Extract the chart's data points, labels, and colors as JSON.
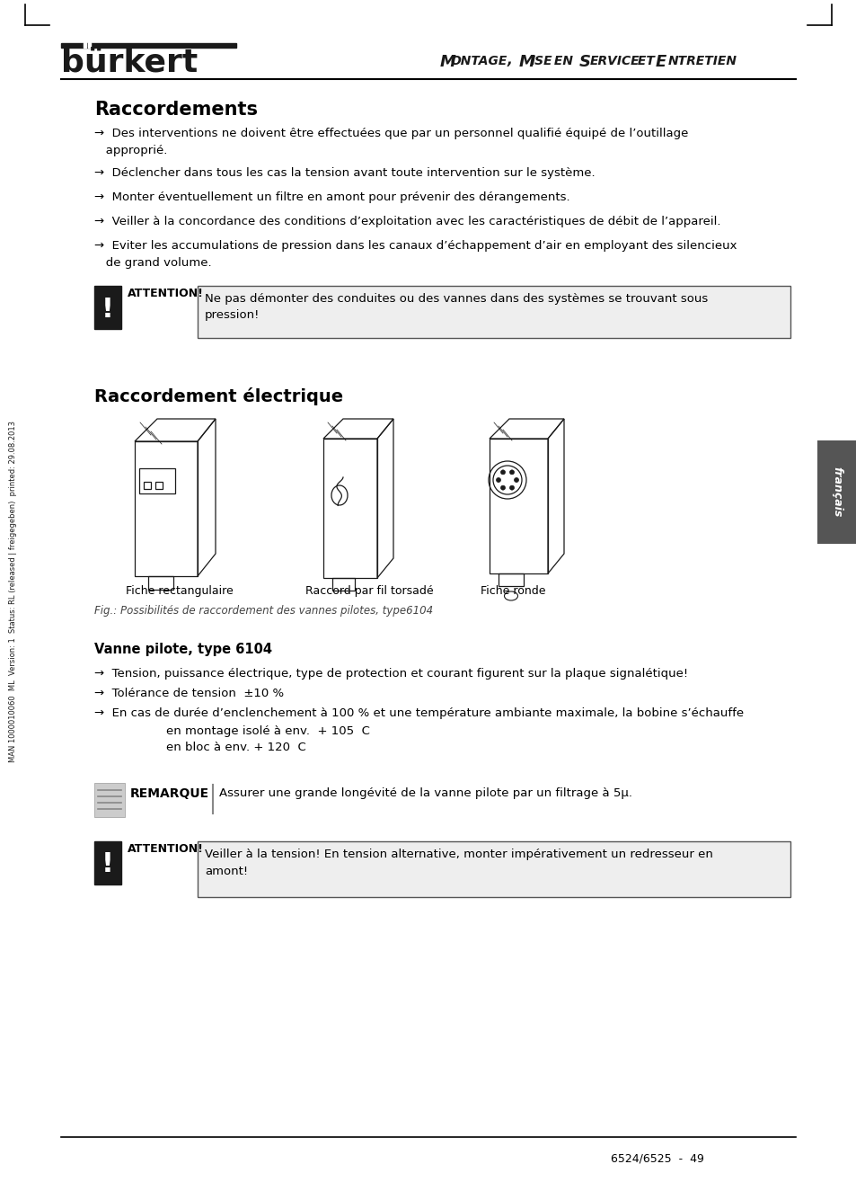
{
  "bg_color": "#ffffff",
  "text_color": "#1a1a1a",
  "header_title": "Montage, Mise en service et Entretien",
  "burkert_text": "bürkert",
  "section1_title": "Raccordements",
  "attention1_label": "ATTENTION!",
  "attention1_text": "Ne pas démonter des conduites ou des vannes dans des systèmes se trouvant sous\npression!",
  "section2_title": "Raccordement électrique",
  "fig_labels": [
    "Fiche rectangulaire",
    "Raccord par fil torsadé",
    "Fiche ronde"
  ],
  "fig_caption": "Fig.: Possibilités de raccordement des vannes pilotes, type6104",
  "section3_title": "Vanne pilote, type 6104",
  "bullets2_1": "→  Tension, puissance électrique, type de protection et courant figurent sur la plaque signalétique!",
  "bullets2_2": "→  Tolérance de tension  ±10 %",
  "bullets2_3": "→  En cas de durée d’enclenchement à 100 % et une température ambiante maximale, la bobine s’échauffe",
  "sub1": "en montage isolé à env.  + 105  C",
  "sub2": "en bloc à env. + 120  C",
  "remarque_label": "REMARQUE",
  "remarque_text": "Assurer une grande longévité de la vanne pilote par un filtrage à 5μ.",
  "attention2_label": "ATTENTION!",
  "attention2_text": "Veiller à la tension! En tension alternative, monter impérativement un redresseur en\namont!",
  "page_number": "6524/6525  -  49",
  "side_text": "MAN 1000010060  ML  Version: 1  Status: RL (released | freigegeben)  printed: 29.08.2013",
  "francais_text": "français",
  "bullet1_l1": "→  Des interventions ne doivent être effectuées que par un personnel qualifié équipé de l’outillage",
  "bullet1_l2": "   approprié.",
  "bullet2": "→  Déclencher dans tous les cas la tension avant toute intervention sur le système.",
  "bullet3": "→  Monter éventuellement un filtre en amont pour prévenir des dérangements.",
  "bullet4": "→  Veiller à la concordance des conditions d’exploitation avec les caractéristiques de débit de l’appareil.",
  "bullet5_l1": "→  Eviter les accumulations de pression dans les canaux d’échappement d’air en employant des silencieux",
  "bullet5_l2": "   de grand volume."
}
